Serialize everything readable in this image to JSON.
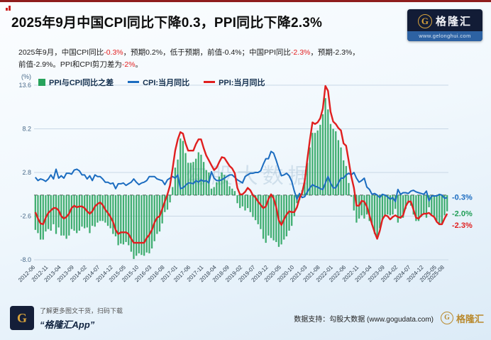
{
  "header": {
    "title": "2025年9月中国CPI同比下降0.3，PPI同比下降2.3%",
    "logo": {
      "monogram": "G",
      "brand": "格隆汇",
      "url": "www.gelonghui.com"
    }
  },
  "subtitle": {
    "segments": [
      {
        "text": "2025年9月，中国CPI同比",
        "red": false
      },
      {
        "text": "-0.3%",
        "red": true
      },
      {
        "text": "，预期0.2%，低于预期，前值-0.4%；中国PPI同比",
        "red": false
      },
      {
        "text": "-2.3%",
        "red": true
      },
      {
        "text": "，预期-2.3%，前值-2.9%。PPI和CPI剪刀差为",
        "red": false
      },
      {
        "text": "-2%",
        "red": true
      },
      {
        "text": "。",
        "red": false
      }
    ]
  },
  "legend": [
    {
      "label": "PPI与CPI同比之差",
      "type": "bar",
      "color": "#27a35c"
    },
    {
      "label": "CPI:当月同比",
      "type": "line",
      "color": "#1b6cc0"
    },
    {
      "label": "PPI:当月同比",
      "type": "line",
      "color": "#e01f1f"
    }
  ],
  "chart_data": {
    "type": "mixed",
    "title": "PPI与CPI同比之差 / CPI当月同比 / PPI当月同比",
    "unit_label": "(%)",
    "ylim": [
      -8.0,
      13.6
    ],
    "y_ticks": [
      13.6,
      8.2,
      2.8,
      -2.6,
      -8.0
    ],
    "grid": true,
    "legend_position": "top-left",
    "x_start": "2012-06",
    "x_end": "2025-09",
    "x_tick_step": 5,
    "x_tick_labels": [
      "2012-06",
      "2012-11",
      "2013-04",
      "2013-09",
      "2014-02",
      "2014-07",
      "2014-12",
      "2015-05",
      "2015-10",
      "2016-03",
      "2016-08",
      "2017-01",
      "2017-06",
      "2017-11",
      "2018-04",
      "2018-09",
      "2019-02",
      "2019-07",
      "2019-12",
      "2020-05",
      "2020-10",
      "2021-03",
      "2021-08",
      "2022-01",
      "2022-06",
      "2022-11",
      "2023-04",
      "2023-09",
      "2024-02",
      "2024-07",
      "2024-12",
      "2025-05",
      "2025-08"
    ],
    "series": [
      {
        "name": "CPI:当月同比",
        "type": "line",
        "color": "#1b6cc0",
        "values": [
          2.2,
          1.8,
          2.0,
          1.9,
          1.7,
          2.0,
          2.5,
          2.0,
          3.2,
          2.1,
          2.4,
          2.1,
          2.7,
          2.7,
          2.6,
          3.1,
          3.2,
          3.0,
          2.5,
          2.5,
          2.0,
          2.4,
          1.8,
          2.5,
          2.3,
          2.3,
          2.0,
          1.6,
          1.6,
          1.4,
          1.5,
          0.8,
          1.4,
          1.4,
          1.5,
          1.2,
          1.4,
          1.6,
          2.0,
          1.6,
          1.3,
          1.5,
          1.6,
          1.8,
          2.3,
          2.3,
          2.3,
          2.0,
          1.9,
          1.8,
          1.3,
          1.9,
          2.1,
          2.3,
          2.1,
          2.5,
          0.8,
          0.9,
          1.2,
          1.5,
          1.5,
          1.4,
          1.8,
          1.6,
          1.9,
          1.7,
          1.8,
          1.5,
          2.9,
          2.1,
          1.8,
          1.8,
          1.9,
          2.1,
          2.3,
          2.5,
          2.5,
          2.2,
          1.9,
          1.7,
          1.5,
          2.3,
          2.5,
          2.7,
          2.7,
          2.8,
          2.8,
          3.0,
          3.8,
          4.5,
          4.5,
          5.4,
          5.2,
          4.3,
          3.3,
          2.4,
          2.5,
          2.7,
          2.4,
          1.7,
          0.5,
          -0.5,
          0.2,
          -0.3,
          -0.2,
          0.4,
          0.9,
          1.3,
          1.1,
          1.0,
          0.8,
          0.7,
          1.5,
          2.3,
          1.5,
          0.9,
          0.9,
          1.5,
          2.1,
          2.1,
          2.5,
          2.7,
          2.5,
          2.8,
          2.1,
          1.6,
          1.8,
          2.1,
          1.0,
          0.7,
          0.1,
          0.2,
          0.0,
          -0.3,
          0.1,
          0.0,
          -0.2,
          -0.5,
          -0.3,
          -0.8,
          0.7,
          0.1,
          0.3,
          0.3,
          0.2,
          0.5,
          0.6,
          0.4,
          0.3,
          0.2,
          0.1,
          0.5,
          -0.7,
          -0.1,
          -0.1,
          -0.1,
          0.1,
          0.0,
          -0.4,
          -0.3
        ]
      },
      {
        "name": "PPI:当月同比",
        "type": "line",
        "color": "#e01f1f",
        "values": [
          -2.1,
          -2.9,
          -3.5,
          -3.6,
          -2.8,
          -2.2,
          -1.9,
          -1.6,
          -1.6,
          -1.9,
          -2.6,
          -2.9,
          -2.7,
          -2.3,
          -1.6,
          -1.3,
          -1.5,
          -1.4,
          -1.4,
          -1.6,
          -2.0,
          -2.3,
          -2.0,
          -1.4,
          -1.1,
          -0.9,
          -1.2,
          -1.8,
          -2.2,
          -2.7,
          -3.3,
          -4.3,
          -4.8,
          -4.6,
          -4.6,
          -4.6,
          -4.8,
          -5.4,
          -5.9,
          -5.9,
          -5.9,
          -5.9,
          -5.9,
          -5.3,
          -4.9,
          -4.3,
          -3.4,
          -2.8,
          -2.6,
          -1.7,
          -0.8,
          0.1,
          1.2,
          3.3,
          5.5,
          6.9,
          7.8,
          7.6,
          6.4,
          5.5,
          5.5,
          5.5,
          6.3,
          6.9,
          6.9,
          5.8,
          4.9,
          4.3,
          3.7,
          3.1,
          3.4,
          4.1,
          4.7,
          4.6,
          4.1,
          3.6,
          3.3,
          2.7,
          0.9,
          0.1,
          0.1,
          0.4,
          0.9,
          0.6,
          0.0,
          -0.3,
          -0.8,
          -1.2,
          -1.6,
          -1.4,
          -0.5,
          0.1,
          -0.4,
          -1.5,
          -3.1,
          -3.7,
          -3.0,
          -2.4,
          -2.0,
          -2.1,
          -2.1,
          -1.5,
          -0.4,
          0.3,
          1.7,
          4.4,
          6.8,
          9.0,
          8.8,
          9.0,
          9.5,
          10.7,
          13.5,
          12.9,
          10.3,
          9.1,
          8.8,
          8.3,
          8.0,
          6.4,
          6.1,
          4.2,
          2.3,
          0.9,
          -1.3,
          -1.3,
          -0.7,
          -0.8,
          -1.4,
          -2.5,
          -3.6,
          -4.6,
          -5.4,
          -4.4,
          -3.0,
          -2.5,
          -2.6,
          -3.0,
          -2.7,
          -2.5,
          -2.7,
          -2.8,
          -2.5,
          -1.4,
          -0.8,
          -0.8,
          -1.8,
          -2.8,
          -2.9,
          -2.5,
          -2.3,
          -2.3,
          -2.2,
          -2.5,
          -2.7,
          -3.3,
          -3.6,
          -3.6,
          -2.9,
          -2.3
        ]
      },
      {
        "name": "PPI与CPI同比之差",
        "type": "bar",
        "color": "#27a35c",
        "derived": "PPI-CPI"
      }
    ],
    "annotations": [
      {
        "label": "-0.3%",
        "color": "#1b6cc0",
        "value": -0.3
      },
      {
        "label": "-2.0%",
        "color": "#1f9d55",
        "value": -2.0
      },
      {
        "label": "-2.3%",
        "color": "#e01f1f",
        "value": -2.3
      }
    ],
    "watermark": "勾股大数据"
  },
  "footer": {
    "monogram": "G",
    "qr_hint": "了解更多图文干货，扫码下载",
    "app_name": "“格隆汇App”",
    "data_support": "数据支持：勾股大数据 (www.gogudata.com)",
    "brand": "格隆汇"
  }
}
